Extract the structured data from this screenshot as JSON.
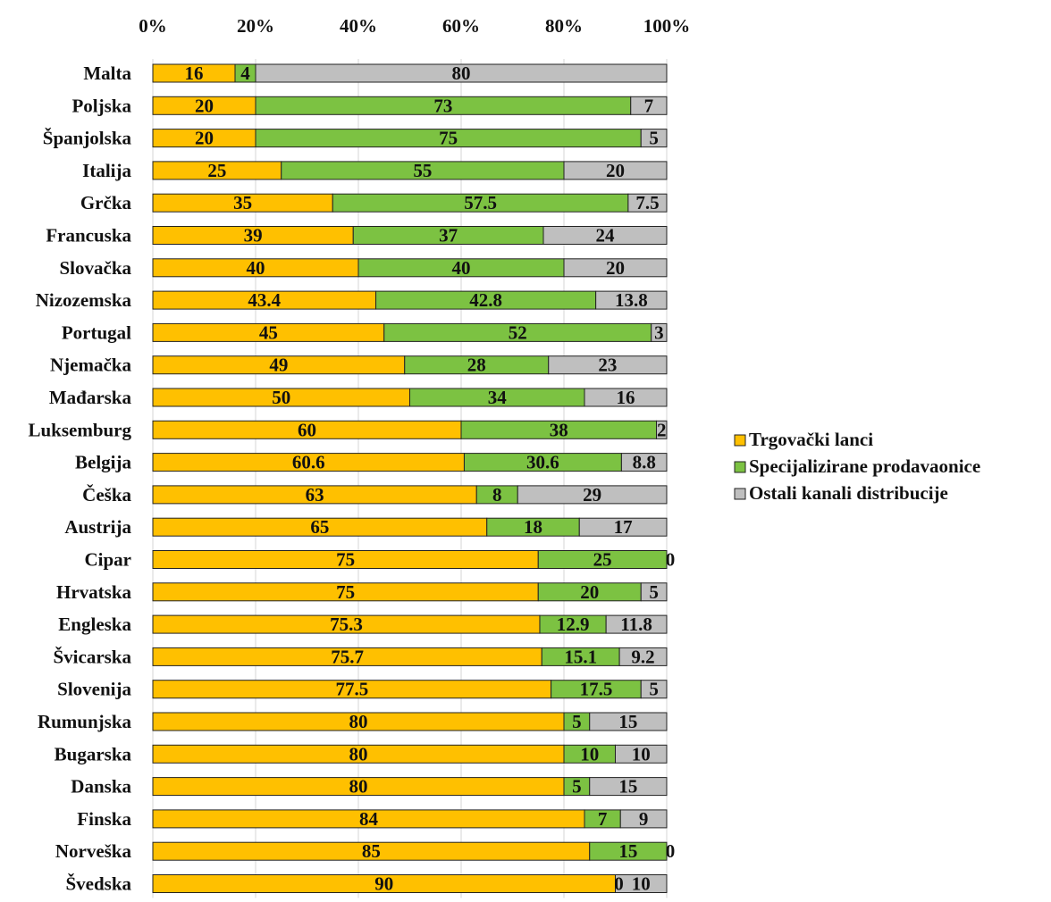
{
  "chart_data": {
    "type": "bar",
    "orientation": "horizontal",
    "stacked": "percent",
    "title": "",
    "xlabel": "",
    "ylabel": "",
    "xlim": [
      0,
      100
    ],
    "x_ticks": [
      "0%",
      "20%",
      "40%",
      "60%",
      "80%",
      "100%"
    ],
    "grid": true,
    "legend_position": "right",
    "categories": [
      "Malta",
      "Poljska",
      "Španjolska",
      "Italija",
      "Grčka",
      "Francuska",
      "Slovačka",
      "Nizozemska",
      "Portugal",
      "Njemačka",
      "Mađarska",
      "Luksemburg",
      "Belgija",
      "Češka",
      "Austrija",
      "Cipar",
      "Hrvatska",
      "Engleska",
      "Švicarska",
      "Slovenija",
      "Rumunjska",
      "Bugarska",
      "Danska",
      "Finska",
      "Norveška",
      "Švedska"
    ],
    "series": [
      {
        "name": "Trgovački lanci",
        "color": "#FFC000",
        "values": [
          16,
          20,
          20,
          25,
          35,
          39,
          40,
          43.4,
          45,
          49,
          50,
          60,
          60.6,
          63,
          65,
          75,
          75,
          75.3,
          75.7,
          77.5,
          80,
          80,
          80,
          84,
          85,
          90
        ],
        "labels": [
          "16",
          "20",
          "20",
          "25",
          "35",
          "39",
          "40",
          "43.4",
          "45",
          "49",
          "50",
          "60",
          "60.6",
          "63",
          "65",
          "75",
          "75",
          "75.3",
          "75.7",
          "77.5",
          "80",
          "80",
          "80",
          "84",
          "85",
          "90"
        ]
      },
      {
        "name": "Specijalizirane prodavaonice",
        "color": "#7CC242",
        "values": [
          4,
          73,
          75,
          55,
          57.5,
          37,
          40,
          42.8,
          52,
          28,
          34,
          38,
          30.6,
          8,
          18,
          25,
          20,
          12.9,
          15.1,
          17.5,
          5,
          10,
          5,
          7,
          15,
          0
        ],
        "labels": [
          "4",
          "73",
          "75",
          "55",
          "57.5",
          "37",
          "40",
          "42.8",
          "52",
          "28",
          "34",
          "38",
          "30.6",
          "8",
          "18",
          "25",
          "20",
          "12.9",
          "15.1",
          "17.5",
          "5",
          "10",
          "5",
          "7",
          "15",
          "0"
        ]
      },
      {
        "name": "Ostali kanali distribucije",
        "color": "#BFBFBF",
        "values": [
          80,
          7,
          5,
          20,
          7.5,
          24,
          20,
          13.8,
          3,
          23,
          16,
          2,
          8.8,
          29,
          17,
          0,
          5,
          11.8,
          9.2,
          5,
          15,
          10,
          15,
          9,
          0,
          10
        ],
        "labels": [
          "80",
          "7",
          "5",
          "20",
          "7.5",
          "24",
          "20",
          "13.8",
          "3",
          "23",
          "16",
          "2",
          "8.8",
          "29",
          "17",
          "0",
          "5",
          "11.8",
          "9.2",
          "5",
          "15",
          "10",
          "15",
          "9",
          "0",
          "10"
        ]
      }
    ]
  }
}
